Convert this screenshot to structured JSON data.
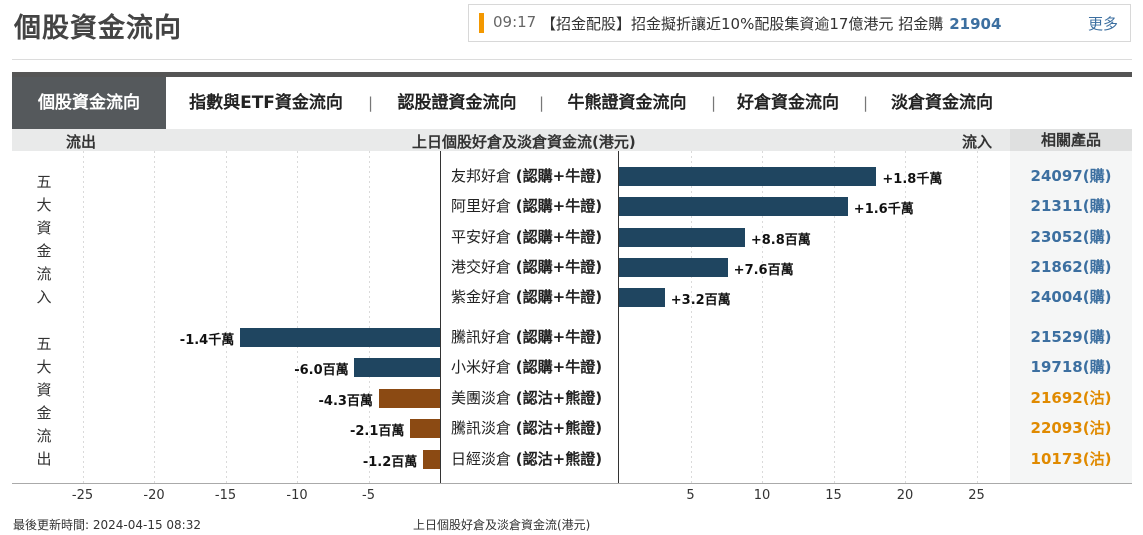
{
  "page_title": "個股資金流向",
  "news": {
    "time": "09:17",
    "headline": "【招金配股】招金擬折讓近10%配股集資逾17億港元 招金購",
    "code": "21904",
    "more_label": "更多"
  },
  "tabs": [
    {
      "label": "個股資金流向",
      "active": true
    },
    {
      "label": "指數與ETF資金流向",
      "active": false
    },
    {
      "label": "認股證資金流向",
      "active": false
    },
    {
      "label": "牛熊證資金流向",
      "active": false
    },
    {
      "label": "好倉資金流向",
      "active": false
    },
    {
      "label": "淡倉資金流向",
      "active": false
    }
  ],
  "tab_separator": "|",
  "header": {
    "outflow": "流出",
    "title": "上日個股好倉及淡倉資金流(港元)",
    "inflow": "流入",
    "products": "相關產品"
  },
  "groups": {
    "inflow_label": "五大資金流入",
    "outflow_label": "五大資金流出"
  },
  "chart_data": {
    "type": "bar",
    "orientation": "horizontal",
    "title": "上日個股好倉及淡倉資金流(港元)",
    "xlabel": "上日個股好倉及淡倉資金流(港元)",
    "unit": "百萬",
    "xlim": [
      -28,
      28
    ],
    "ticks": [
      -25,
      -20,
      -15,
      -10,
      -5,
      5,
      10,
      15,
      20,
      25
    ],
    "grid": true,
    "rows": [
      {
        "name": "友邦好倉",
        "type_label": "(認購+牛證)",
        "value": 18,
        "value_label": "+1.8千萬",
        "product": "24097(購)",
        "kind": "call"
      },
      {
        "name": "阿里好倉",
        "type_label": "(認購+牛證)",
        "value": 16,
        "value_label": "+1.6千萬",
        "product": "21311(購)",
        "kind": "call"
      },
      {
        "name": "平安好倉",
        "type_label": "(認購+牛證)",
        "value": 8.8,
        "value_label": "+8.8百萬",
        "product": "23052(購)",
        "kind": "call"
      },
      {
        "name": "港交好倉",
        "type_label": "(認購+牛證)",
        "value": 7.6,
        "value_label": "+7.6百萬",
        "product": "21862(購)",
        "kind": "call"
      },
      {
        "name": "紫金好倉",
        "type_label": "(認購+牛證)",
        "value": 3.2,
        "value_label": "+3.2百萬",
        "product": "24004(購)",
        "kind": "call"
      },
      {
        "name": "騰訊好倉",
        "type_label": "(認購+牛證)",
        "value": -14,
        "value_label": "-1.4千萬",
        "product": "21529(購)",
        "kind": "call"
      },
      {
        "name": "小米好倉",
        "type_label": "(認購+牛證)",
        "value": -6.0,
        "value_label": "-6.0百萬",
        "product": "19718(購)",
        "kind": "call"
      },
      {
        "name": "美團淡倉",
        "type_label": "(認沽+熊證)",
        "value": -4.3,
        "value_label": "-4.3百萬",
        "product": "21692(沽)",
        "kind": "put"
      },
      {
        "name": "騰訊淡倉",
        "type_label": "(認沽+熊證)",
        "value": -2.1,
        "value_label": "-2.1百萬",
        "product": "22093(沽)",
        "kind": "put"
      },
      {
        "name": "日經淡倉",
        "type_label": "(認沽+熊證)",
        "value": -1.2,
        "value_label": "-1.2百萬",
        "product": "10173(沽)",
        "kind": "put"
      }
    ],
    "colors": {
      "call": "#1f4560",
      "put": "#8b4a13"
    }
  },
  "footer": {
    "updated": "最後更新時間: 2024-04-15 08:32",
    "axis_label": "上日個股好倉及淡倉資金流(港元)"
  }
}
